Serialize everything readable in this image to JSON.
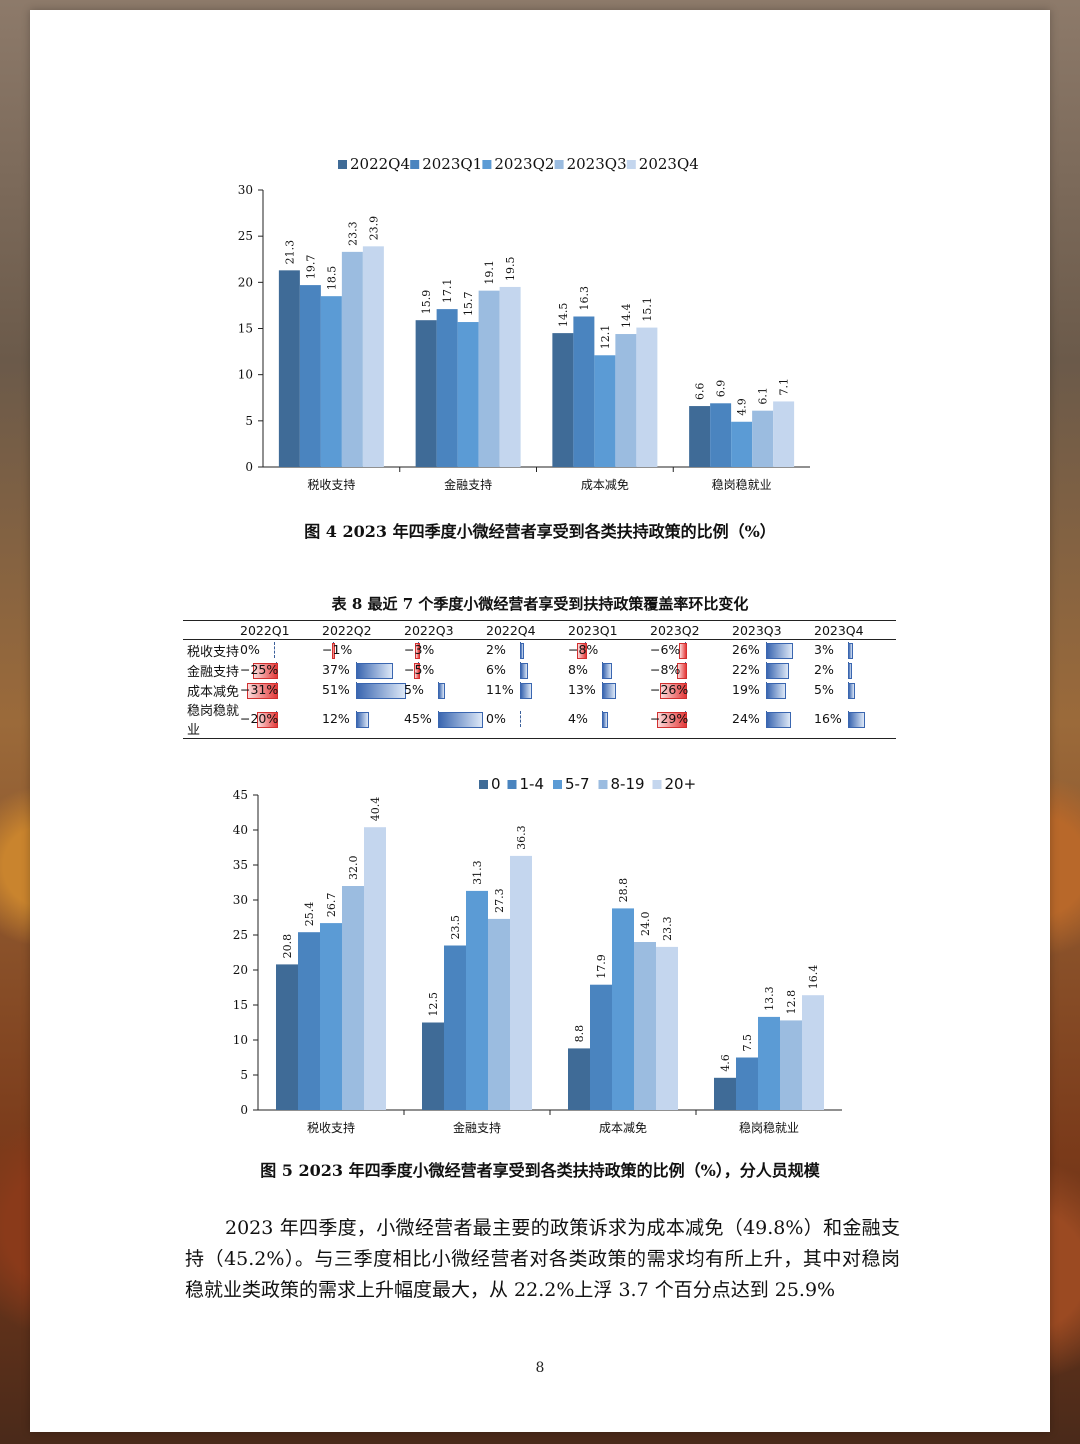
{
  "page_number": "8",
  "figure4": {
    "caption": "图 4 2023 年四季度小微经营者享受到各类扶持政策的比例（%）"
  },
  "table8": {
    "title": "表 8 最近 7 个季度小微经营者享受到扶持政策覆盖率环比变化",
    "columns": [
      "2022Q1",
      "2022Q2",
      "2022Q3",
      "2022Q4",
      "2023Q1",
      "2023Q2",
      "2023Q3",
      "2023Q4"
    ],
    "rows": [
      {
        "label": "税收支持",
        "values": [
          0,
          -1,
          -3,
          2,
          -8,
          -6,
          26,
          3
        ]
      },
      {
        "label": "金融支持",
        "values": [
          -25,
          37,
          -5,
          6,
          8,
          -8,
          22,
          2
        ]
      },
      {
        "label": "成本减免",
        "values": [
          -31,
          51,
          5,
          11,
          13,
          -26,
          19,
          5
        ]
      },
      {
        "label": "稳岗稳就业",
        "values": [
          -20,
          12,
          45,
          0,
          4,
          -29,
          24,
          16
        ]
      }
    ]
  },
  "figure5": {
    "caption": "图 5 2023 年四季度小微经营者享受到各类扶持政策的比例（%），分人员规模"
  },
  "paragraph": "2023 年四季度，小微经营者最主要的政策诉求为成本减免（49.8%）和金融支持（45.2%）。与三季度相比小微经营者对各类政策的需求均有所上升，其中对稳岗稳就业类政策的需求上升幅度最大，从 22.2%上浮 3.7 个百分点达到 25.9%",
  "chart_data": [
    {
      "type": "bar",
      "categories": [
        "税收支持",
        "金融支持",
        "成本减免",
        "稳岗稳就业"
      ],
      "series": [
        {
          "name": "2022Q4",
          "values": [
            21.3,
            15.9,
            14.5,
            6.6
          ]
        },
        {
          "name": "2023Q1",
          "values": [
            19.7,
            17.1,
            16.3,
            6.9
          ]
        },
        {
          "name": "2023Q2",
          "values": [
            18.5,
            15.7,
            12.1,
            4.9
          ]
        },
        {
          "name": "2023Q3",
          "values": [
            23.3,
            19.1,
            14.4,
            6.1
          ]
        },
        {
          "name": "2023Q4",
          "values": [
            23.9,
            19.5,
            15.1,
            7.1
          ]
        }
      ],
      "ylim": [
        0,
        30
      ],
      "yticks": [
        0,
        5,
        10,
        15,
        20,
        25,
        30
      ],
      "legend_position": "top",
      "colors": [
        "#3f6b97",
        "#4a84bf",
        "#5b9bd5",
        "#9bbce0",
        "#c4d6ee"
      ]
    },
    {
      "type": "bar",
      "categories": [
        "税收支持",
        "金融支持",
        "成本减免",
        "稳岗稳就业"
      ],
      "series": [
        {
          "name": "0",
          "values": [
            20.8,
            12.5,
            8.8,
            4.6
          ]
        },
        {
          "name": "1-4",
          "values": [
            25.4,
            23.5,
            17.9,
            7.5
          ]
        },
        {
          "name": "5-7",
          "values": [
            26.7,
            31.3,
            28.8,
            13.3
          ]
        },
        {
          "name": "8-19",
          "values": [
            32.0,
            27.3,
            24.0,
            12.8
          ]
        },
        {
          "name": "20+",
          "values": [
            40.4,
            36.3,
            23.3,
            16.4
          ]
        }
      ],
      "ylim": [
        0,
        45
      ],
      "yticks": [
        0,
        5,
        10,
        15,
        20,
        25,
        30,
        35,
        40,
        45
      ],
      "legend_position": "top",
      "colors": [
        "#3f6b97",
        "#4a84bf",
        "#5b9bd5",
        "#9bbce0",
        "#c4d6ee"
      ]
    }
  ]
}
